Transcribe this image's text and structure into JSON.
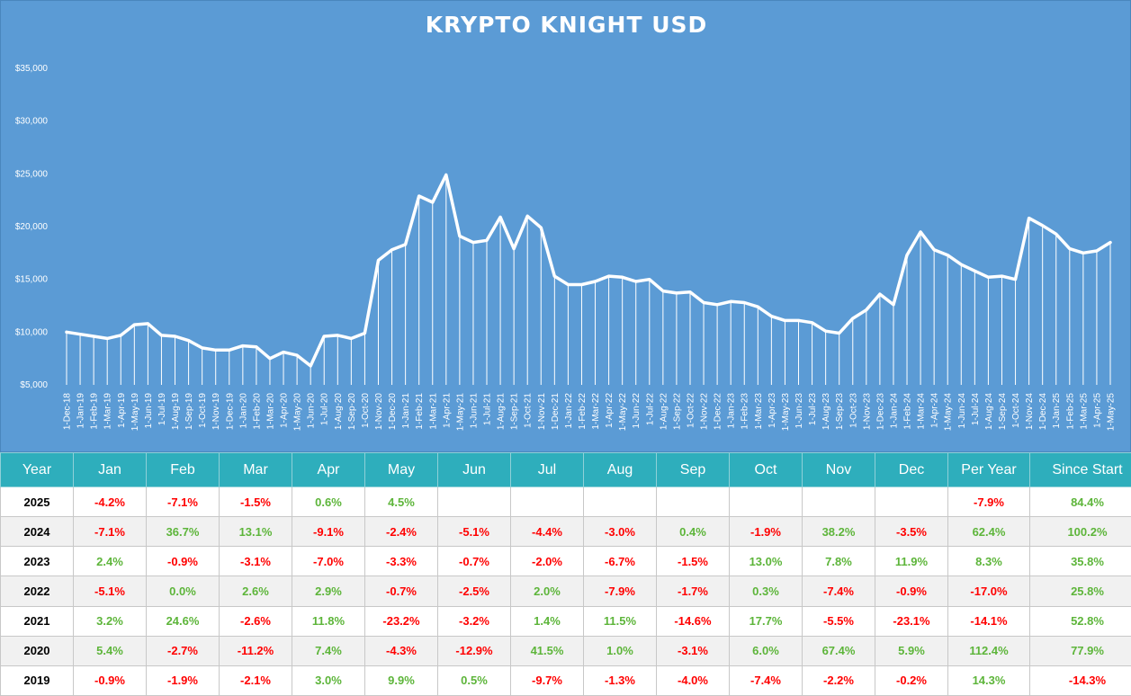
{
  "chart_data": {
    "type": "area",
    "title": "KRYPTO KNIGHT USD",
    "xlabel": "",
    "ylabel": "",
    "ylim": [
      5000,
      35000
    ],
    "y_ticks": [
      "$5,000",
      "$10,000",
      "$15,000",
      "$20,000",
      "$25,000",
      "$30,000",
      "$35,000"
    ],
    "x": [
      "1-Dec-18",
      "1-Jan-19",
      "1-Feb-19",
      "1-Mar-19",
      "1-Apr-19",
      "1-May-19",
      "1-Jun-19",
      "1-Jul-19",
      "1-Aug-19",
      "1-Sep-19",
      "1-Oct-19",
      "1-Nov-19",
      "1-Dec-19",
      "1-Jan-20",
      "1-Feb-20",
      "1-Mar-20",
      "1-Apr-20",
      "1-May-20",
      "1-Jun-20",
      "1-Jul-20",
      "1-Aug-20",
      "1-Sep-20",
      "1-Oct-20",
      "1-Nov-20",
      "1-Dec-20",
      "1-Jan-21",
      "1-Feb-21",
      "1-Mar-21",
      "1-Apr-21",
      "1-May-21",
      "1-Jun-21",
      "1-Jul-21",
      "1-Aug-21",
      "1-Sep-21",
      "1-Oct-21",
      "1-Nov-21",
      "1-Dec-21",
      "1-Jan-22",
      "1-Feb-22",
      "1-Mar-22",
      "1-Apr-22",
      "1-May-22",
      "1-Jun-22",
      "1-Jul-22",
      "1-Aug-22",
      "1-Sep-22",
      "1-Oct-22",
      "1-Nov-22",
      "1-Dec-22",
      "1-Jan-23",
      "1-Feb-23",
      "1-Mar-23",
      "1-Apr-23",
      "1-May-23",
      "1-Jun-23",
      "1-Jul-23",
      "1-Aug-23",
      "1-Sep-23",
      "1-Oct-23",
      "1-Nov-23",
      "1-Dec-23",
      "1-Jan-24",
      "1-Feb-24",
      "1-Mar-24",
      "1-Apr-24",
      "1-May-24",
      "1-Jun-24",
      "1-Jul-24",
      "1-Aug-24",
      "1-Sep-24",
      "1-Oct-24",
      "1-Nov-24",
      "1-Dec-24",
      "1-Jan-25",
      "1-Feb-25",
      "1-Mar-25",
      "1-Apr-25",
      "1-May-25"
    ],
    "values": [
      10000,
      9800,
      9600,
      9400,
      9700,
      10700,
      10800,
      9700,
      9600,
      9200,
      8500,
      8300,
      8300,
      8700,
      8600,
      7500,
      8100,
      7800,
      6800,
      9600,
      9700,
      9400,
      9900,
      16800,
      17800,
      18300,
      22900,
      22300,
      24900,
      19100,
      18500,
      18700,
      20900,
      17900,
      21000,
      19900,
      15300,
      14500,
      14500,
      14800,
      15300,
      15200,
      14800,
      15000,
      13900,
      13700,
      13800,
      12800,
      12600,
      12900,
      12800,
      12400,
      11500,
      11100,
      11100,
      10900,
      10100,
      9900,
      11300,
      12100,
      13600,
      12600,
      17300,
      19500,
      17800,
      17300,
      16400,
      15800,
      15200,
      15300,
      15000,
      20800,
      20100,
      19300,
      17900,
      17500,
      17700,
      18500
    ]
  },
  "table": {
    "headers": [
      "Year",
      "Jan",
      "Feb",
      "Mar",
      "Apr",
      "May",
      "Jun",
      "Jul",
      "Aug",
      "Sep",
      "Oct",
      "Nov",
      "Dec",
      "Per Year",
      "Since Start"
    ],
    "rows": [
      [
        "2025",
        "-4.2%",
        "-7.1%",
        "-1.5%",
        "0.6%",
        "4.5%",
        "",
        "",
        "",
        "",
        "",
        "",
        "",
        "-7.9%",
        "84.4%"
      ],
      [
        "2024",
        "-7.1%",
        "36.7%",
        "13.1%",
        "-9.1%",
        "-2.4%",
        "-5.1%",
        "-4.4%",
        "-3.0%",
        "0.4%",
        "-1.9%",
        "38.2%",
        "-3.5%",
        "62.4%",
        "100.2%"
      ],
      [
        "2023",
        "2.4%",
        "-0.9%",
        "-3.1%",
        "-7.0%",
        "-3.3%",
        "-0.7%",
        "-2.0%",
        "-6.7%",
        "-1.5%",
        "13.0%",
        "7.8%",
        "11.9%",
        "8.3%",
        "35.8%"
      ],
      [
        "2022",
        "-5.1%",
        "0.0%",
        "2.6%",
        "2.9%",
        "-0.7%",
        "-2.5%",
        "2.0%",
        "-7.9%",
        "-1.7%",
        "0.3%",
        "-7.4%",
        "-0.9%",
        "-17.0%",
        "25.8%"
      ],
      [
        "2021",
        "3.2%",
        "24.6%",
        "-2.6%",
        "11.8%",
        "-23.2%",
        "-3.2%",
        "1.4%",
        "11.5%",
        "-14.6%",
        "17.7%",
        "-5.5%",
        "-23.1%",
        "-14.1%",
        "52.8%"
      ],
      [
        "2020",
        "5.4%",
        "-2.7%",
        "-11.2%",
        "7.4%",
        "-4.3%",
        "-12.9%",
        "41.5%",
        "1.0%",
        "-3.1%",
        "6.0%",
        "67.4%",
        "5.9%",
        "112.4%",
        "77.9%"
      ],
      [
        "2019",
        "-0.9%",
        "-1.9%",
        "-2.1%",
        "3.0%",
        "9.9%",
        "0.5%",
        "-9.7%",
        "-1.3%",
        "-4.0%",
        "-7.4%",
        "-2.2%",
        "-0.2%",
        "14.3%",
        "-14.3%"
      ]
    ]
  },
  "colors": {
    "chart_background": "#5b9bd5",
    "line": "#ffffff",
    "header_background": "#2eaebc",
    "positive": "#5db53a",
    "negative": "#ff0000"
  }
}
